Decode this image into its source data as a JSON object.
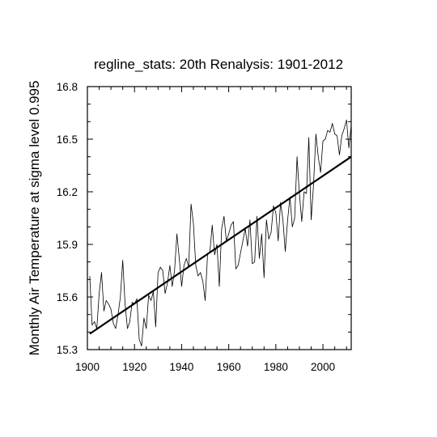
{
  "chart_data": {
    "type": "line",
    "title": "regline_stats: 20th Renalysis: 1901-2012",
    "xlabel": "",
    "ylabel": "Monthly Air Temperature at sigma level 0.995",
    "xlim": [
      1900,
      2012
    ],
    "ylim": [
      15.3,
      16.8
    ],
    "x_ticks": [
      1900,
      1920,
      1940,
      1960,
      1980,
      2000
    ],
    "y_ticks": [
      "15.3",
      "15.6",
      "15.9",
      "16.2",
      "16.5",
      "16.8"
    ],
    "series": [
      {
        "kind": "data",
        "x_start": 1901,
        "x_step": 1,
        "values": [
          15.72,
          15.44,
          15.46,
          15.42,
          15.62,
          15.74,
          15.52,
          15.58,
          15.56,
          15.53,
          15.45,
          15.42,
          15.5,
          15.6,
          15.81,
          15.56,
          15.42,
          15.46,
          15.57,
          15.56,
          15.59,
          15.36,
          15.32,
          15.48,
          15.42,
          15.61,
          15.58,
          15.63,
          15.43,
          15.74,
          15.77,
          15.75,
          15.62,
          15.68,
          15.78,
          15.66,
          15.75,
          15.96,
          15.82,
          15.66,
          15.78,
          15.82,
          15.77,
          16.13,
          16.02,
          15.78,
          15.72,
          15.74,
          15.69,
          15.58,
          15.84,
          15.86,
          16.01,
          15.84,
          15.9,
          15.66,
          15.99,
          16.06,
          15.92,
          15.96,
          16.01,
          16.03,
          15.76,
          15.78,
          15.85,
          15.92,
          15.99,
          15.89,
          16.04,
          15.79,
          15.8,
          16.06,
          15.82,
          15.96,
          15.71,
          16.04,
          15.93,
          15.97,
          16.12,
          16.08,
          15.92,
          16.14,
          16.04,
          15.86,
          16.04,
          16.17,
          16.0,
          16.05,
          16.4,
          16.19,
          16.03,
          16.2,
          16.19,
          16.51,
          16.04,
          16.24,
          16.53,
          16.4,
          16.31,
          16.49,
          16.5,
          16.55,
          16.54,
          16.59,
          16.53,
          16.52,
          16.41,
          16.52,
          16.56,
          16.61,
          16.45,
          16.58
        ]
      },
      {
        "kind": "regression",
        "x": [
          1901,
          2012
        ],
        "values": [
          15.39,
          16.4
        ]
      }
    ],
    "grid": false,
    "legend": "none",
    "colors": {
      "data_line": "#000000",
      "regression_line": "#000000",
      "axes": "#000000"
    }
  }
}
